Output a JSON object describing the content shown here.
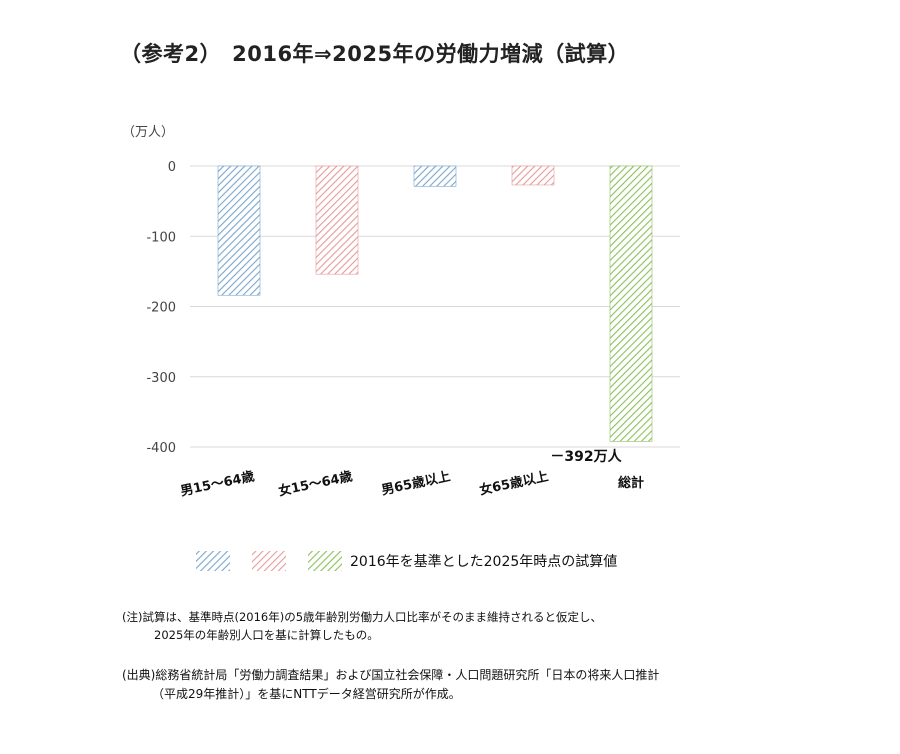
{
  "title": "（参考2）　2016年⇒2025年の労働力増減（試算）",
  "chart_data": {
    "type": "bar",
    "unit_label": "（万人）",
    "categories": [
      "男15～64歳",
      "女15～64歳",
      "男65歳以上",
      "女65歳以上",
      "総計"
    ],
    "values": [
      -184,
      -154,
      -29,
      -27,
      -392
    ],
    "ylim": [
      -400,
      0
    ],
    "yticks": [
      0,
      -100,
      -200,
      -300,
      -400
    ],
    "grid": true,
    "bar_colors": [
      "#7aa6cc",
      "#e89a9a",
      "#7aa6cc",
      "#e89a9a",
      "#8cbf5a"
    ],
    "annotation": "－392万人",
    "legend": {
      "label": "2016年を基準とした2025年時点の試算値",
      "swatch_colors": [
        "#7aa6cc",
        "#e89a9a",
        "#8cbf5a"
      ]
    }
  },
  "note": {
    "line1": "(注)試算は、基準時点(2016年)の5歳年齢別労働力人口比率がそのまま維持されると仮定し、",
    "line2": "2025年の年齢別人口を基に計算したもの。"
  },
  "source": {
    "line1": "(出典)総務省統計局「労働力調査結果」および国立社会保障・人口問題研究所「日本の将来人口推計",
    "line2": "（平成29年推計）」を基にNTTデータ経営研究所が作成。"
  }
}
